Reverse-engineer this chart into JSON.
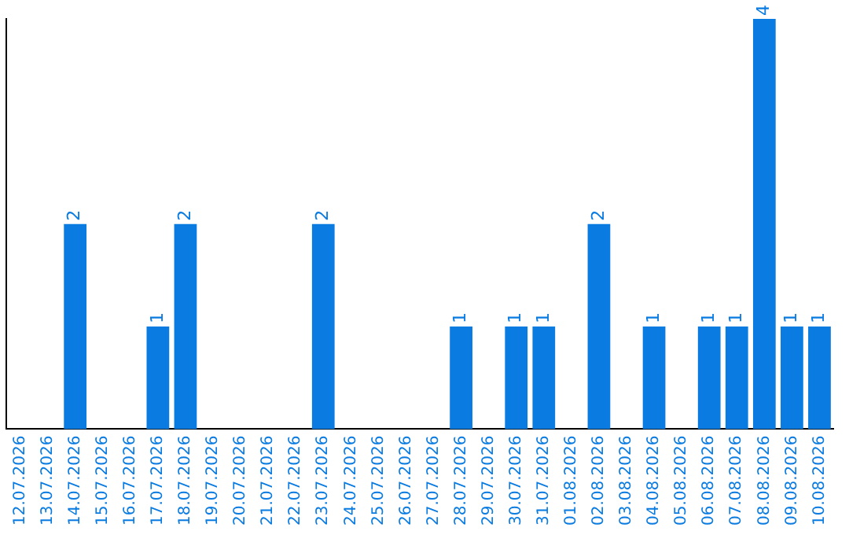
{
  "chart_data": {
    "type": "bar",
    "categories": [
      "12.07.2026",
      "13.07.2026",
      "14.07.2026",
      "15.07.2026",
      "16.07.2026",
      "17.07.2026",
      "18.07.2026",
      "19.07.2026",
      "20.07.2026",
      "21.07.2026",
      "22.07.2026",
      "23.07.2026",
      "24.07.2026",
      "25.07.2026",
      "26.07.2026",
      "27.07.2026",
      "28.07.2026",
      "29.07.2026",
      "30.07.2026",
      "31.07.2026",
      "01.08.2026",
      "02.08.2026",
      "03.08.2026",
      "04.08.2026",
      "05.08.2026",
      "06.08.2026",
      "07.08.2026",
      "08.08.2026",
      "09.08.2026",
      "10.08.2026"
    ],
    "values": [
      null,
      null,
      2,
      null,
      null,
      1,
      2,
      null,
      null,
      null,
      null,
      2,
      null,
      null,
      null,
      null,
      1,
      null,
      1,
      1,
      null,
      2,
      null,
      1,
      null,
      1,
      1,
      4,
      1,
      1
    ],
    "color": "#0a7be0",
    "data_labels": true,
    "tick_labels": "x",
    "grid": false,
    "legend": false
  }
}
